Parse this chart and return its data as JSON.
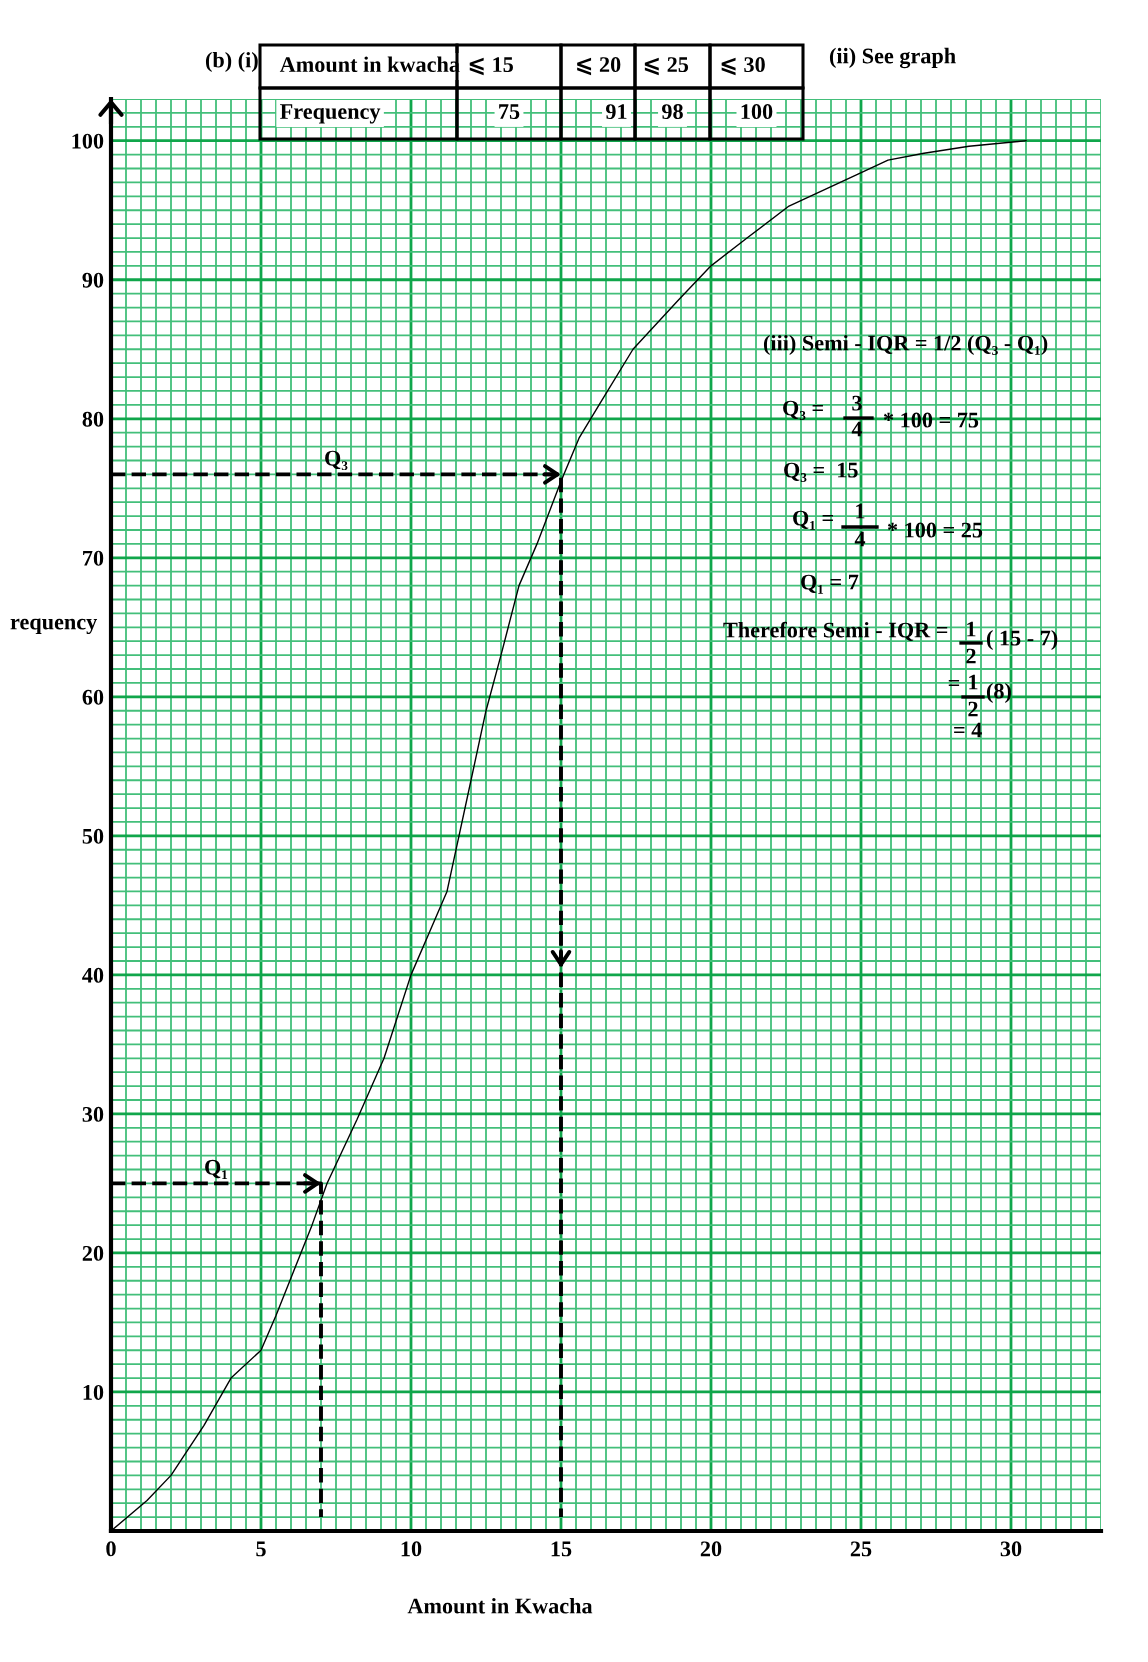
{
  "chart_data": {
    "type": "line",
    "xlabel": "Amount in Kwacha",
    "ylabel": "requency",
    "series": [
      {
        "x": [
          0,
          1.2,
          2,
          3.1,
          4,
          5,
          5.5,
          6.7,
          7.2,
          8.2,
          9.1,
          10,
          10.6,
          11.2,
          11.6,
          12,
          12.5,
          13,
          13.6,
          14.2,
          15,
          15.6,
          16.3,
          17.4,
          18.9,
          20,
          21.2,
          22.6,
          24.9,
          25.9,
          27.1,
          28.6,
          30.5
        ],
        "values": [
          0,
          2.2,
          4,
          7.6,
          11,
          13,
          15.5,
          22,
          25,
          29.6,
          34,
          40,
          43,
          46,
          50,
          54,
          59,
          63,
          68,
          71,
          75.5,
          78.6,
          81.1,
          85,
          88.5,
          91,
          93,
          95.3,
          97.6,
          98.6,
          99.1,
          99.6,
          100
        ],
        "color": "#000000"
      },
      {
        "name": "Q₃",
        "x": [
          0,
          15,
          15,
          15
        ],
        "values": [
          76,
          76,
          40.5,
          1
        ],
        "color": "#000000",
        "line_style": "dashed"
      },
      {
        "name": "Q₁",
        "x": [
          0,
          7,
          7
        ],
        "values": [
          25,
          25,
          1
        ],
        "color": "#000000",
        "line_style": "dashed"
      }
    ],
    "xlim": [
      0,
      33
    ],
    "ylim": [
      0,
      103
    ],
    "xticks": [
      0,
      {
        "value": 0.5,
        "label": null
      },
      {
        "value": 1,
        "label": null
      },
      {
        "value": 1.5,
        "label": null
      },
      {
        "value": 2,
        "label": null
      },
      {
        "value": 2.5,
        "label": null
      },
      {
        "value": 3,
        "label": null
      },
      {
        "value": 3.5,
        "label": null
      },
      {
        "value": 4,
        "label": null
      },
      {
        "value": 4.5,
        "label": null
      },
      5,
      {
        "value": 5.5,
        "label": null
      },
      {
        "value": 6,
        "label": null
      },
      {
        "value": 6.5,
        "label": null
      },
      {
        "value": 7,
        "label": null
      },
      {
        "value": 7.5,
        "label": null
      },
      {
        "value": 8,
        "label": null
      },
      {
        "value": 8.5,
        "label": null
      },
      {
        "value": 9,
        "label": null
      },
      {
        "value": 9.5,
        "label": null
      },
      10,
      {
        "value": 10.5,
        "label": null
      },
      {
        "value": 11,
        "label": null
      },
      {
        "value": 11.5,
        "label": null
      },
      {
        "value": 12,
        "label": null
      },
      {
        "value": 12.5,
        "label": null
      },
      {
        "value": 13,
        "label": null
      },
      {
        "value": 13.5,
        "label": null
      },
      {
        "value": 14,
        "label": null
      },
      {
        "value": 14.5,
        "label": null
      },
      15,
      {
        "value": 15.5,
        "label": null
      },
      {
        "value": 16,
        "label": null
      },
      {
        "value": 16.5,
        "label": null
      },
      {
        "value": 17,
        "label": null
      },
      {
        "value": 17.5,
        "label": null
      },
      {
        "value": 18,
        "label": null
      },
      {
        "value": 18.5,
        "label": null
      },
      {
        "value": 19,
        "label": null
      },
      {
        "value": 19.5,
        "label": null
      },
      20,
      {
        "value": 20.5,
        "label": null
      },
      {
        "value": 21,
        "label": null
      },
      {
        "value": 21.5,
        "label": null
      },
      {
        "value": 22,
        "label": null
      },
      {
        "value": 22.5,
        "label": null
      },
      {
        "value": 23,
        "label": null
      },
      {
        "value": 23.5,
        "label": null
      },
      {
        "value": 24,
        "label": null
      },
      {
        "value": 24.5,
        "label": null
      },
      25,
      {
        "value": 25.5,
        "label": null
      },
      {
        "value": 26,
        "label": null
      },
      {
        "value": 26.5,
        "label": null
      },
      {
        "value": 27,
        "label": null
      },
      {
        "value": 27.5,
        "label": null
      },
      {
        "value": 28,
        "label": null
      },
      {
        "value": 28.5,
        "label": null
      },
      {
        "value": 29,
        "label": null
      },
      {
        "value": 29.5,
        "label": null
      },
      30,
      {
        "value": 30.5,
        "label": null
      },
      {
        "value": 31,
        "label": null
      },
      {
        "value": 31.5,
        "label": null
      },
      {
        "value": 32,
        "label": null
      },
      {
        "value": 32.5,
        "label": null
      },
      {
        "value": 33,
        "label": null
      }
    ],
    "yticks": [
      {
        "value": 0,
        "label": null
      },
      {
        "value": 1,
        "label": null
      },
      {
        "value": 2,
        "label": null
      },
      {
        "value": 3,
        "label": null
      },
      {
        "value": 4,
        "label": null
      },
      {
        "value": 5,
        "label": null
      },
      {
        "value": 6,
        "label": null
      },
      {
        "value": 7,
        "label": null
      },
      {
        "value": 8,
        "label": null
      },
      {
        "value": 9,
        "label": null
      },
      10,
      {
        "value": 11,
        "label": null
      },
      {
        "value": 12,
        "label": null
      },
      {
        "value": 13,
        "label": null
      },
      {
        "value": 14,
        "label": null
      },
      {
        "value": 15,
        "label": null
      },
      {
        "value": 16,
        "label": null
      },
      {
        "value": 17,
        "label": null
      },
      {
        "value": 18,
        "label": null
      },
      {
        "value": 19,
        "label": null
      },
      20,
      {
        "value": 21,
        "label": null
      },
      {
        "value": 22,
        "label": null
      },
      {
        "value": 23,
        "label": null
      },
      {
        "value": 24,
        "label": null
      },
      {
        "value": 25,
        "label": null
      },
      {
        "value": 26,
        "label": null
      },
      {
        "value": 27,
        "label": null
      },
      {
        "value": 28,
        "label": null
      },
      {
        "value": 29,
        "label": null
      },
      30,
      {
        "value": 31,
        "label": null
      },
      {
        "value": 32,
        "label": null
      },
      {
        "value": 33,
        "label": null
      },
      {
        "value": 34,
        "label": null
      },
      {
        "value": 35,
        "label": null
      },
      {
        "value": 36,
        "label": null
      },
      {
        "value": 37,
        "label": null
      },
      {
        "value": 38,
        "label": null
      },
      {
        "value": 39,
        "label": null
      },
      40,
      {
        "value": 41,
        "label": null
      },
      {
        "value": 42,
        "label": null
      },
      {
        "value": 43,
        "label": null
      },
      {
        "value": 44,
        "label": null
      },
      {
        "value": 45,
        "label": null
      },
      {
        "value": 46,
        "label": null
      },
      {
        "value": 47,
        "label": null
      },
      {
        "value": 48,
        "label": null
      },
      {
        "value": 49,
        "label": null
      },
      50,
      {
        "value": 51,
        "label": null
      },
      {
        "value": 52,
        "label": null
      },
      {
        "value": 53,
        "label": null
      },
      {
        "value": 54,
        "label": null
      },
      {
        "value": 55,
        "label": null
      },
      {
        "value": 56,
        "label": null
      },
      {
        "value": 57,
        "label": null
      },
      {
        "value": 58,
        "label": null
      },
      {
        "value": 59,
        "label": null
      },
      60,
      {
        "value": 61,
        "label": null
      },
      {
        "value": 62,
        "label": null
      },
      {
        "value": 63,
        "label": null
      },
      {
        "value": 64,
        "label": null
      },
      {
        "value": 65,
        "label": null
      },
      {
        "value": 66,
        "label": null
      },
      {
        "value": 67,
        "label": null
      },
      {
        "value": 68,
        "label": null
      },
      {
        "value": 69,
        "label": null
      },
      70,
      {
        "value": 71,
        "label": null
      },
      {
        "value": 72,
        "label": null
      },
      {
        "value": 73,
        "label": null
      },
      {
        "value": 74,
        "label": null
      },
      {
        "value": 75,
        "label": null
      },
      {
        "value": 76,
        "label": null
      },
      {
        "value": 77,
        "label": null
      },
      {
        "value": 78,
        "label": null
      },
      {
        "value": 79,
        "label": null
      },
      80,
      {
        "value": 81,
        "label": null
      },
      {
        "value": 82,
        "label": null
      },
      {
        "value": 83,
        "label": null
      },
      {
        "value": 84,
        "label": null
      },
      {
        "value": 85,
        "label": null
      },
      {
        "value": 86,
        "label": null
      },
      {
        "value": 87,
        "label": null
      },
      {
        "value": 88,
        "label": null
      },
      {
        "value": 89,
        "label": null
      },
      90,
      {
        "value": 91,
        "label": null
      },
      {
        "value": 92,
        "label": null
      },
      {
        "value": 93,
        "label": null
      },
      {
        "value": 94,
        "label": null
      },
      {
        "value": 95,
        "label": null
      },
      {
        "value": 96,
        "label": null
      },
      {
        "value": 97,
        "label": null
      },
      {
        "value": 98,
        "label": null
      },
      {
        "value": 99,
        "label": null
      },
      100,
      {
        "value": 101,
        "label": null
      },
      {
        "value": 102,
        "label": null
      },
      {
        "value": 103,
        "label": null
      }
    ],
    "grid": true,
    "annotations": [
      "(b) (i)",
      "Amount in kwacha",
      "⩽ 15",
      "⩽ 20",
      "⩽ 25",
      "⩽ 30",
      "Frequency",
      "75",
      "91",
      "98",
      "100",
      "(ii) See graph",
      "(iii) Semi - IQR = 1/2 (Q₃ - Q₁)",
      "Q₃ =",
      "3",
      "4",
      "* 100 = 75",
      "Q₃ =  15",
      "Q₁ =",
      "1",
      "4",
      "* 100 = 25",
      "Q₁ = 7",
      "Therefore Semi - IQR =",
      "1",
      "2",
      "( 15 - 7)",
      "=",
      "1",
      "2",
      "(8)",
      "= 4"
    ]
  }
}
